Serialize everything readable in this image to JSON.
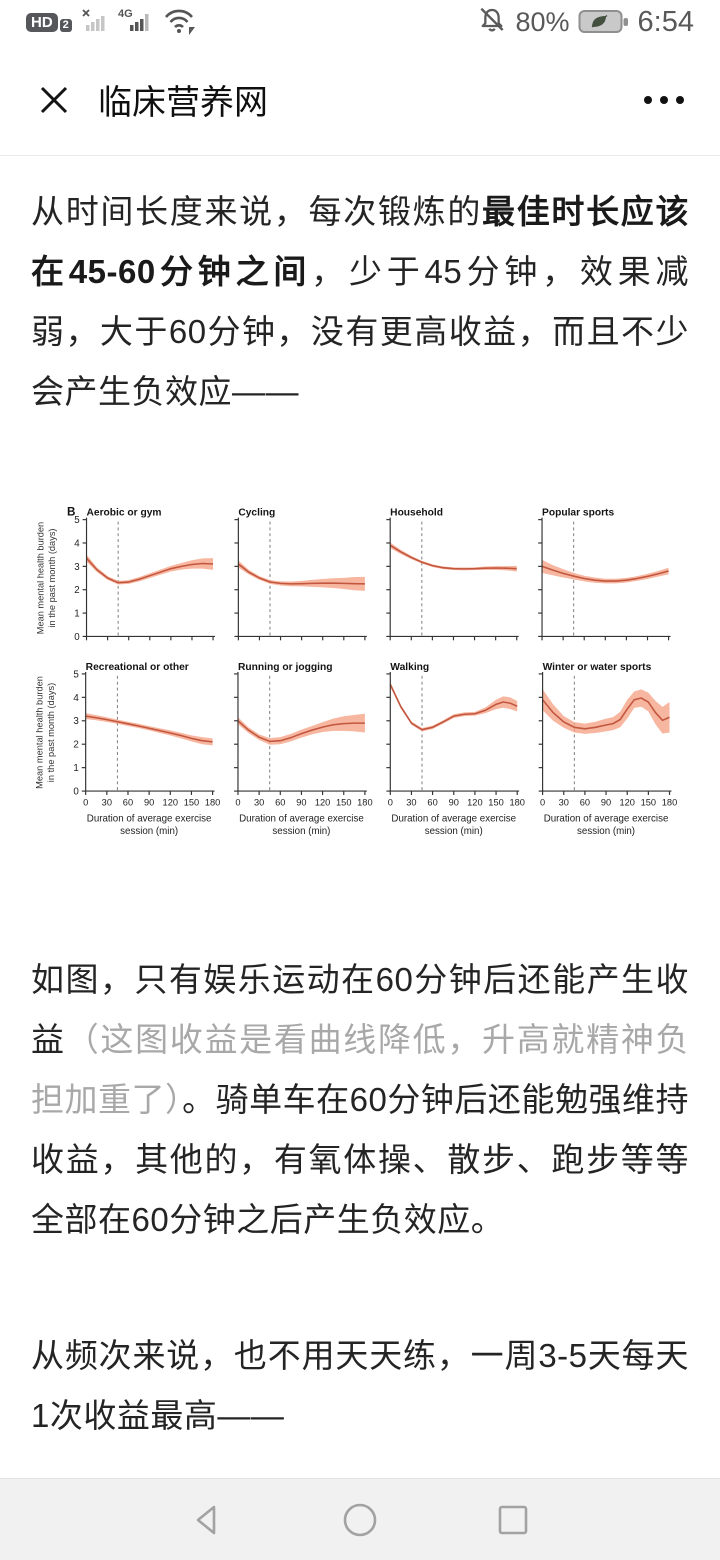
{
  "status_bar": {
    "hd_label": "HD",
    "hd_badge": "2",
    "network_label": "4G",
    "battery_percent": "80%",
    "time": "6:54"
  },
  "title_bar": {
    "title": "临床营养网"
  },
  "article": {
    "paragraph1": {
      "normal1": "从时间长度来说，每次锻炼的",
      "bold": "最佳时长应该在45-60分钟之间",
      "normal2": "，少于45分钟，效果减弱，大于60分钟，没有更高收益，而且不少会产生负效应——"
    },
    "paragraph2": {
      "normal1": "如图，只有娱乐运动在60分钟后还能产生收益",
      "gray": "（这图收益是看曲线降低，升高就精神负担加重了）",
      "normal2": "。骑单车在60分钟后还能勉强维持收益，其他的，有氧体操、散步、跑步等等全部在60分钟之后产生负效应。"
    },
    "paragraph3": "从频次来说，也不用天天练，一周3-5天每天1次收益最高——"
  },
  "chart_data": {
    "type": "line",
    "figure_label": "B",
    "ylabel_line1": "Mean mental health burden",
    "ylabel_line2": "in the past month (days)",
    "xlabel_line1": "Duration of average exercise",
    "xlabel_line2": "session (min)",
    "x_ticks": [
      0,
      30,
      60,
      90,
      120,
      150,
      180
    ],
    "y_ticks": [
      0,
      1,
      2,
      3,
      4,
      5
    ],
    "ylim": [
      0,
      5
    ],
    "xlim": [
      0,
      180
    ],
    "dashed_x": 45,
    "line_color": "#c2563f",
    "band_color": "#f5a284",
    "panels": [
      {
        "title": "Aerobic or gym",
        "x": [
          0,
          15,
          30,
          45,
          60,
          75,
          90,
          105,
          120,
          135,
          150,
          165,
          180
        ],
        "y": [
          3.35,
          2.85,
          2.5,
          2.3,
          2.33,
          2.45,
          2.6,
          2.75,
          2.9,
          3.0,
          3.08,
          3.12,
          3.1
        ],
        "lo": [
          3.2,
          2.75,
          2.42,
          2.22,
          2.25,
          2.36,
          2.5,
          2.64,
          2.78,
          2.86,
          2.9,
          2.9,
          2.85
        ],
        "hi": [
          3.5,
          2.95,
          2.58,
          2.38,
          2.41,
          2.54,
          2.7,
          2.86,
          3.02,
          3.14,
          3.26,
          3.34,
          3.35
        ]
      },
      {
        "title": "Cycling",
        "x": [
          0,
          15,
          30,
          45,
          60,
          75,
          90,
          105,
          120,
          135,
          150,
          165,
          180
        ],
        "y": [
          3.1,
          2.75,
          2.5,
          2.33,
          2.27,
          2.25,
          2.26,
          2.27,
          2.28,
          2.28,
          2.27,
          2.26,
          2.25
        ],
        "lo": [
          2.95,
          2.65,
          2.42,
          2.25,
          2.18,
          2.15,
          2.14,
          2.12,
          2.1,
          2.07,
          2.03,
          1.98,
          1.95
        ],
        "hi": [
          3.25,
          2.85,
          2.58,
          2.41,
          2.36,
          2.35,
          2.38,
          2.42,
          2.46,
          2.49,
          2.51,
          2.54,
          2.55
        ]
      },
      {
        "title": "Household",
        "x": [
          0,
          15,
          30,
          45,
          60,
          75,
          90,
          105,
          120,
          135,
          150,
          165,
          180
        ],
        "y": [
          3.9,
          3.62,
          3.38,
          3.18,
          3.03,
          2.94,
          2.9,
          2.89,
          2.9,
          2.92,
          2.93,
          2.92,
          2.9
        ],
        "lo": [
          3.78,
          3.53,
          3.31,
          3.12,
          2.97,
          2.88,
          2.84,
          2.83,
          2.84,
          2.85,
          2.85,
          2.83,
          2.78
        ],
        "hi": [
          4.02,
          3.71,
          3.45,
          3.24,
          3.09,
          3.0,
          2.96,
          2.95,
          2.96,
          2.99,
          3.01,
          3.01,
          3.02
        ]
      },
      {
        "title": "Popular sports",
        "x": [
          0,
          15,
          30,
          45,
          60,
          75,
          90,
          105,
          120,
          135,
          150,
          165,
          180
        ],
        "y": [
          3.0,
          2.84,
          2.7,
          2.58,
          2.48,
          2.41,
          2.37,
          2.37,
          2.41,
          2.48,
          2.57,
          2.68,
          2.8
        ],
        "lo": [
          2.72,
          2.62,
          2.52,
          2.44,
          2.36,
          2.3,
          2.27,
          2.27,
          2.31,
          2.38,
          2.46,
          2.56,
          2.66
        ],
        "hi": [
          3.28,
          3.06,
          2.88,
          2.72,
          2.6,
          2.52,
          2.47,
          2.47,
          2.51,
          2.58,
          2.68,
          2.8,
          2.94
        ]
      },
      {
        "title": "Recreational or other",
        "x": [
          0,
          15,
          30,
          45,
          60,
          75,
          90,
          105,
          120,
          135,
          150,
          165,
          180
        ],
        "y": [
          3.2,
          3.13,
          3.05,
          2.96,
          2.87,
          2.78,
          2.68,
          2.58,
          2.48,
          2.37,
          2.25,
          2.15,
          2.1
        ],
        "lo": [
          3.07,
          3.02,
          2.95,
          2.87,
          2.78,
          2.69,
          2.59,
          2.48,
          2.37,
          2.25,
          2.12,
          2.0,
          1.95
        ],
        "hi": [
          3.33,
          3.24,
          3.15,
          3.05,
          2.96,
          2.87,
          2.77,
          2.68,
          2.59,
          2.49,
          2.38,
          2.3,
          2.25
        ]
      },
      {
        "title": "Running or jogging",
        "x": [
          0,
          15,
          30,
          45,
          60,
          75,
          90,
          105,
          120,
          135,
          150,
          165,
          180
        ],
        "y": [
          3.0,
          2.6,
          2.3,
          2.12,
          2.15,
          2.28,
          2.45,
          2.6,
          2.73,
          2.83,
          2.88,
          2.9,
          2.9
        ],
        "lo": [
          2.85,
          2.48,
          2.18,
          1.98,
          2.0,
          2.12,
          2.28,
          2.42,
          2.52,
          2.57,
          2.57,
          2.55,
          2.5
        ],
        "hi": [
          3.15,
          2.72,
          2.42,
          2.26,
          2.3,
          2.44,
          2.62,
          2.78,
          2.94,
          3.09,
          3.19,
          3.25,
          3.3
        ]
      },
      {
        "title": "Walking",
        "x": [
          0,
          15,
          30,
          45,
          60,
          75,
          90,
          105,
          120,
          135,
          150,
          160,
          170,
          180
        ],
        "y": [
          4.55,
          3.6,
          2.9,
          2.62,
          2.72,
          2.95,
          3.2,
          3.28,
          3.3,
          3.45,
          3.7,
          3.8,
          3.75,
          3.62
        ],
        "lo": [
          4.45,
          3.52,
          2.83,
          2.55,
          2.65,
          2.88,
          3.12,
          3.2,
          3.22,
          3.33,
          3.5,
          3.56,
          3.5,
          3.4
        ],
        "hi": [
          4.65,
          3.68,
          2.97,
          2.69,
          2.79,
          3.02,
          3.28,
          3.36,
          3.38,
          3.57,
          3.9,
          4.04,
          4.0,
          3.84
        ]
      },
      {
        "title": "Winter or water sports",
        "x": [
          0,
          15,
          30,
          45,
          60,
          75,
          90,
          100,
          110,
          120,
          130,
          140,
          150,
          160,
          170,
          180
        ],
        "y": [
          3.9,
          3.35,
          2.95,
          2.72,
          2.66,
          2.72,
          2.82,
          2.88,
          3.05,
          3.5,
          3.9,
          3.97,
          3.8,
          3.35,
          3.02,
          3.15
        ],
        "lo": [
          3.45,
          3.0,
          2.7,
          2.5,
          2.44,
          2.48,
          2.55,
          2.6,
          2.72,
          3.1,
          3.55,
          3.6,
          3.4,
          2.85,
          2.45,
          2.5
        ],
        "hi": [
          4.35,
          3.7,
          3.2,
          2.94,
          2.88,
          2.96,
          3.09,
          3.16,
          3.38,
          3.9,
          4.25,
          4.34,
          4.2,
          3.85,
          3.59,
          3.8
        ]
      }
    ]
  }
}
